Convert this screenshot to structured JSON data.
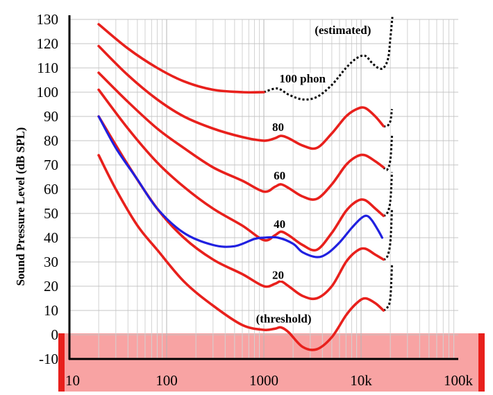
{
  "chart_data": {
    "type": "line",
    "title": "",
    "xlabel": "",
    "ylabel": "Sound Pressure Level (dB SPL)",
    "x_scale": "log",
    "xlim": [
      10,
      100000
    ],
    "ylim": [
      -10,
      130
    ],
    "grid": true,
    "x_tick_labels": [
      "10",
      "100",
      "1000",
      "10k",
      "100k"
    ],
    "y_tick_labels": [
      "130",
      "120",
      "110",
      "100",
      "90",
      "80",
      "70",
      "60",
      "50",
      "40",
      "30",
      "20",
      "10",
      "0",
      "-10"
    ],
    "shaded_region": {
      "y_from": -10,
      "y_to": 0,
      "color": "#f8a3a3",
      "edge_color": "#e8201c"
    },
    "series": [
      {
        "color": "#e8201c",
        "style": "solid",
        "points": [
          [
            20,
            74
          ],
          [
            30,
            60
          ],
          [
            50,
            45
          ],
          [
            80,
            35
          ],
          [
            150,
            22
          ],
          [
            300,
            12
          ],
          [
            600,
            4
          ],
          [
            1000,
            2
          ],
          [
            1300,
            2.5
          ],
          [
            1500,
            3
          ],
          [
            1800,
            1
          ],
          [
            2500,
            -5
          ],
          [
            3500,
            -6
          ],
          [
            5000,
            -1
          ],
          [
            7000,
            8
          ],
          [
            9000,
            13
          ],
          [
            11000,
            15
          ],
          [
            14000,
            13
          ],
          [
            17000,
            10
          ]
        ]
      },
      {
        "color": "#e8201c",
        "style": "solid",
        "points": [
          [
            20,
            90
          ],
          [
            40,
            70
          ],
          [
            80,
            52
          ],
          [
            150,
            40
          ],
          [
            300,
            31
          ],
          [
            600,
            25
          ],
          [
            1000,
            20
          ],
          [
            1300,
            21
          ],
          [
            1500,
            22
          ],
          [
            1800,
            20
          ],
          [
            2500,
            16
          ],
          [
            3500,
            15
          ],
          [
            5000,
            20
          ],
          [
            7000,
            30
          ],
          [
            9000,
            34.5
          ],
          [
            11000,
            35.5
          ],
          [
            14000,
            33
          ],
          [
            17000,
            31
          ]
        ]
      },
      {
        "color": "#e8201c",
        "style": "solid",
        "points": [
          [
            20,
            101
          ],
          [
            40,
            85
          ],
          [
            80,
            71
          ],
          [
            150,
            61
          ],
          [
            300,
            52
          ],
          [
            600,
            45
          ],
          [
            1000,
            39
          ],
          [
            1300,
            41
          ],
          [
            1500,
            42.5
          ],
          [
            1800,
            41
          ],
          [
            2500,
            37
          ],
          [
            3500,
            35
          ],
          [
            5000,
            42
          ],
          [
            7000,
            51
          ],
          [
            9000,
            55
          ],
          [
            11000,
            55.5
          ],
          [
            14000,
            52
          ],
          [
            17000,
            49
          ]
        ]
      },
      {
        "color": "#e8201c",
        "style": "solid",
        "points": [
          [
            20,
            108
          ],
          [
            40,
            96
          ],
          [
            80,
            85
          ],
          [
            150,
            77
          ],
          [
            300,
            69
          ],
          [
            600,
            63.5
          ],
          [
            1000,
            59
          ],
          [
            1300,
            61
          ],
          [
            1500,
            62
          ],
          [
            1800,
            60.5
          ],
          [
            2500,
            57
          ],
          [
            3500,
            56
          ],
          [
            5000,
            62
          ],
          [
            7000,
            70
          ],
          [
            9000,
            73.5
          ],
          [
            11000,
            74
          ],
          [
            14000,
            71.5
          ],
          [
            17000,
            69
          ]
        ]
      },
      {
        "color": "#e8201c",
        "style": "solid",
        "points": [
          [
            20,
            119
          ],
          [
            40,
            107
          ],
          [
            80,
            97
          ],
          [
            150,
            90
          ],
          [
            300,
            85
          ],
          [
            600,
            81.5
          ],
          [
            1000,
            80
          ],
          [
            1300,
            81
          ],
          [
            1500,
            82
          ],
          [
            1800,
            81
          ],
          [
            2500,
            78
          ],
          [
            3500,
            77
          ],
          [
            5000,
            83
          ],
          [
            7000,
            90
          ],
          [
            9000,
            93
          ],
          [
            11000,
            93.5
          ],
          [
            14000,
            90
          ],
          [
            17000,
            86
          ]
        ]
      },
      {
        "color": "#e8201c",
        "style": "solid",
        "points": [
          [
            20,
            128
          ],
          [
            40,
            118
          ],
          [
            80,
            110
          ],
          [
            150,
            104.5
          ],
          [
            300,
            101
          ],
          [
            600,
            100
          ],
          [
            1000,
            100
          ]
        ]
      },
      {
        "color": "#000000",
        "style": "dotted",
        "points": [
          [
            1000,
            100
          ],
          [
            1300,
            101.5
          ],
          [
            1500,
            101
          ],
          [
            1800,
            99
          ],
          [
            2500,
            97
          ],
          [
            3500,
            98
          ],
          [
            5000,
            103
          ],
          [
            7000,
            110
          ],
          [
            9000,
            114
          ],
          [
            11000,
            115
          ],
          [
            13000,
            112
          ],
          [
            15000,
            110
          ],
          [
            17000,
            110
          ],
          [
            19000,
            114
          ],
          [
            20000,
            122
          ],
          [
            21000,
            131
          ]
        ]
      },
      {
        "color": "#000000",
        "style": "dotted",
        "points": [
          [
            17000,
            86
          ],
          [
            18500,
            86
          ],
          [
            20000,
            88
          ],
          [
            20800,
            93
          ]
        ]
      },
      {
        "color": "#000000",
        "style": "dotted",
        "points": [
          [
            17000,
            69
          ],
          [
            18500,
            68
          ],
          [
            20000,
            72
          ],
          [
            20800,
            82
          ]
        ]
      },
      {
        "color": "#000000",
        "style": "dotted",
        "points": [
          [
            17000,
            49
          ],
          [
            18500,
            50
          ],
          [
            20000,
            55
          ],
          [
            20800,
            67
          ]
        ]
      },
      {
        "color": "#000000",
        "style": "dotted",
        "points": [
          [
            17000,
            31
          ],
          [
            18500,
            32
          ],
          [
            20000,
            38
          ],
          [
            20800,
            52
          ]
        ]
      },
      {
        "color": "#000000",
        "style": "dotted",
        "points": [
          [
            17000,
            10
          ],
          [
            18500,
            11
          ],
          [
            20000,
            15
          ],
          [
            20800,
            29
          ]
        ]
      },
      {
        "color": "#2020e0",
        "style": "solid",
        "points": [
          [
            20,
            90
          ],
          [
            30,
            77
          ],
          [
            50,
            64
          ],
          [
            80,
            52
          ],
          [
            150,
            42
          ],
          [
            300,
            37
          ],
          [
            500,
            36.5
          ],
          [
            800,
            39.5
          ],
          [
            1000,
            40
          ],
          [
            1400,
            40
          ],
          [
            2000,
            37.5
          ],
          [
            2500,
            34
          ],
          [
            3500,
            32
          ],
          [
            4500,
            33.5
          ],
          [
            6000,
            38
          ],
          [
            8000,
            44
          ],
          [
            10000,
            48
          ],
          [
            11500,
            49
          ],
          [
            13000,
            47
          ],
          [
            15000,
            43
          ],
          [
            16500,
            40
          ]
        ]
      }
    ],
    "annotations": [
      {
        "text": "(estimated)",
        "x": 6500,
        "y": 124
      },
      {
        "text": "100 phon",
        "x": 2500,
        "y": 104
      },
      {
        "text": "80",
        "x": 1400,
        "y": 84
      },
      {
        "text": "60",
        "x": 1450,
        "y": 64
      },
      {
        "text": "40",
        "x": 1450,
        "y": 44
      },
      {
        "text": "20",
        "x": 1400,
        "y": 23
      },
      {
        "text": "(threshold)",
        "x": 1600,
        "y": 5
      }
    ]
  }
}
